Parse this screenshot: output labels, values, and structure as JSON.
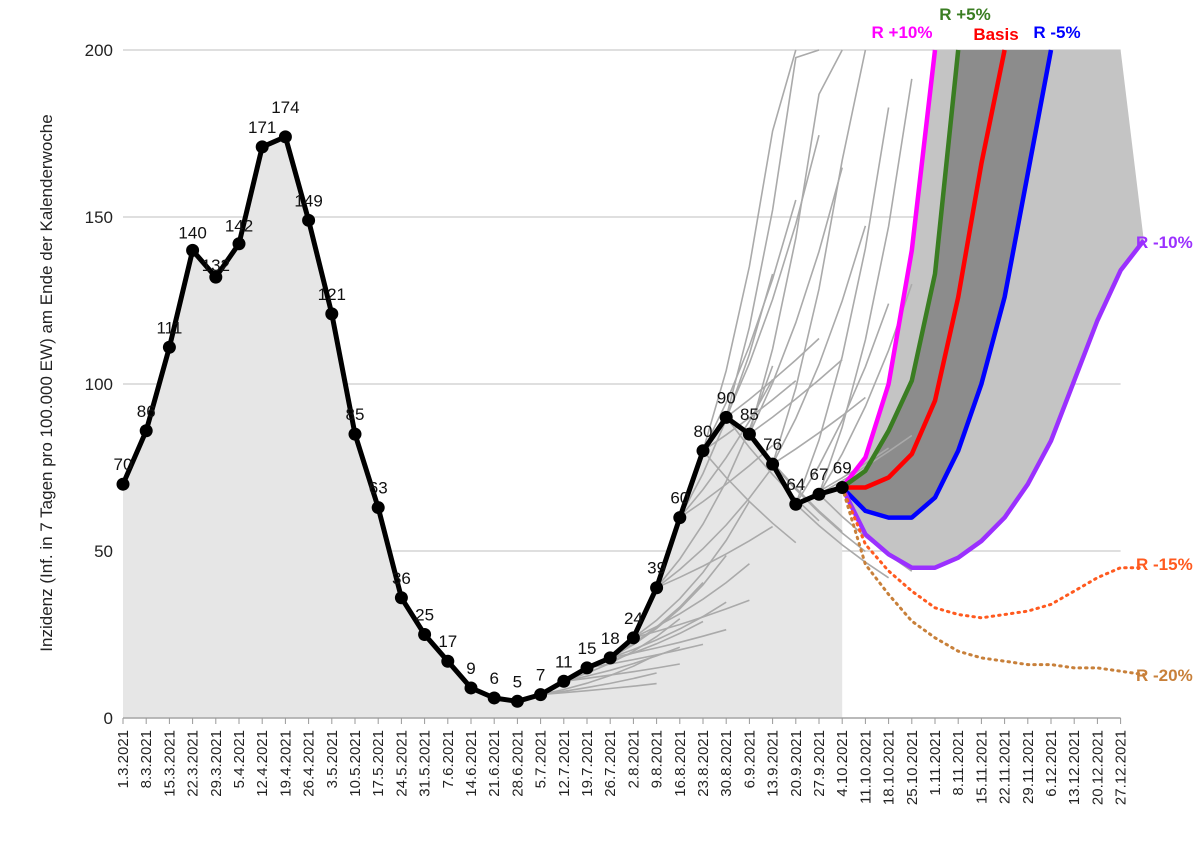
{
  "chart_data": {
    "type": "line",
    "ylabel": "Inzidenz (Inf. in 7 Tagen pro 100.000 EW) am Ende der Kalenderwoche",
    "ylim": [
      0,
      200
    ],
    "yticks": [
      0,
      50,
      100,
      150,
      200
    ],
    "grid": true,
    "x_dates": [
      "1.3.2021",
      "8.3.2021",
      "15.3.2021",
      "22.3.2021",
      "29.3.2021",
      "5.4.2021",
      "12.4.2021",
      "19.4.2021",
      "26.4.2021",
      "3.5.2021",
      "10.5.2021",
      "17.5.2021",
      "24.5.2021",
      "31.5.2021",
      "7.6.2021",
      "14.6.2021",
      "21.6.2021",
      "28.6.2021",
      "5.7.2021",
      "12.7.2021",
      "19.7.2021",
      "26.7.2021",
      "2.8.2021",
      "9.8.2021",
      "16.8.2021",
      "23.8.2021",
      "30.8.2021",
      "6.9.2021",
      "13.9.2021",
      "20.9.2021",
      "27.9.2021",
      "4.10.2021",
      "11.10.2021",
      "18.10.2021",
      "25.10.2021",
      "1.11.2021",
      "8.11.2021",
      "15.11.2021",
      "22.11.2021",
      "29.11.2021",
      "6.12.2021",
      "13.12.2021",
      "20.12.2021",
      "27.12.2021"
    ],
    "actual": {
      "values": [
        70,
        86,
        111,
        140,
        132,
        142,
        171,
        174,
        149,
        121,
        85,
        63,
        36,
        25,
        17,
        9,
        6,
        5,
        7,
        11,
        15,
        18,
        24,
        39,
        60,
        80,
        90,
        85,
        76,
        64,
        67,
        69
      ],
      "labels": [
        "70",
        "86",
        "111",
        "140",
        "132",
        "142",
        "171",
        "174",
        "149",
        "121",
        "85",
        "63",
        "36",
        "25",
        "17",
        "9",
        "6",
        "5",
        "7",
        "11",
        "15",
        "18",
        "24",
        "39",
        "60",
        "80",
        "90",
        "85",
        "76",
        "64",
        "67",
        "69"
      ],
      "color": "#000000"
    },
    "scenarios": [
      {
        "name": "R +10%",
        "color": "#ff00ff",
        "style": "solid",
        "values": [
          69,
          78,
          100,
          140,
          200,
          null,
          null,
          null,
          null,
          null,
          null,
          null,
          null
        ]
      },
      {
        "name": "R +5%",
        "color": "#3a7d22",
        "style": "solid",
        "values": [
          69,
          74,
          86,
          101,
          133,
          200,
          null,
          null,
          null,
          null,
          null,
          null,
          null
        ]
      },
      {
        "name": "Basis",
        "color": "#ff0000",
        "style": "solid",
        "values": [
          69,
          69,
          72,
          79,
          95,
          126,
          166,
          200,
          null,
          null,
          null,
          null,
          null
        ]
      },
      {
        "name": "R -5%",
        "color": "#0000ff",
        "style": "solid",
        "values": [
          69,
          62,
          60,
          60,
          66,
          80,
          100,
          126,
          163,
          200,
          null,
          null,
          null
        ]
      },
      {
        "name": "R -10%",
        "color": "#9b30ff",
        "style": "solid",
        "values": [
          69,
          55,
          49,
          45,
          45,
          48,
          53,
          60,
          70,
          83,
          101,
          119,
          134,
          143
        ]
      },
      {
        "name": "R -15%",
        "color": "#ff5a1f",
        "style": "dotted",
        "values": [
          69,
          52,
          44,
          38,
          33,
          31,
          30,
          31,
          32,
          34,
          38,
          42,
          45,
          45
        ]
      },
      {
        "name": "R -20%",
        "color": "#c8803a",
        "style": "dotted",
        "values": [
          69,
          46,
          37,
          29,
          24,
          20,
          18,
          17,
          16,
          16,
          15,
          15,
          14,
          13
        ]
      }
    ],
    "historical_forecasts_color": "#aaaaaa"
  }
}
